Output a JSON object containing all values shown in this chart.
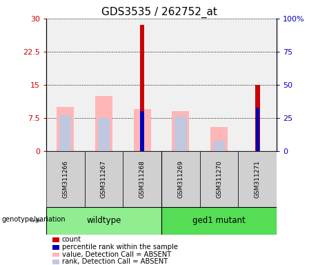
{
  "title": "GDS3535 / 262752_at",
  "samples": [
    "GSM311266",
    "GSM311267",
    "GSM311268",
    "GSM311269",
    "GSM311270",
    "GSM311271"
  ],
  "count_values": [
    0,
    0,
    28.5,
    0,
    0,
    15.0
  ],
  "rank_values": [
    0,
    0,
    30.0,
    0,
    0,
    33.0
  ],
  "absent_value_values": [
    10.0,
    12.5,
    9.5,
    9.0,
    5.5,
    0
  ],
  "absent_rank_values": [
    27.0,
    25.0,
    0,
    26.0,
    8.0,
    0
  ],
  "ylim_left": [
    0,
    30
  ],
  "ylim_right": [
    0,
    100
  ],
  "yticks_left": [
    0,
    7.5,
    15,
    22.5,
    30
  ],
  "yticks_right": [
    0,
    25,
    50,
    75,
    100
  ],
  "ytick_labels_left": [
    "0",
    "7.5",
    "15",
    "22.5",
    "30"
  ],
  "ytick_labels_right": [
    "0",
    "25",
    "50",
    "75",
    "100%"
  ],
  "color_count": "#cc0000",
  "color_rank": "#0000bb",
  "color_absent_value": "#ffb6b6",
  "color_absent_rank": "#c0c8e0",
  "legend_items": [
    {
      "label": "count",
      "color": "#cc0000"
    },
    {
      "label": "percentile rank within the sample",
      "color": "#0000bb"
    },
    {
      "label": "value, Detection Call = ABSENT",
      "color": "#ffb6b6"
    },
    {
      "label": "rank, Detection Call = ABSENT",
      "color": "#c0c8e0"
    }
  ],
  "tick_fontsize": 8,
  "title_fontsize": 11,
  "background_plot": "#f0f0f0",
  "background_xlabels": "#d0d0d0",
  "wt_color": "#90ee90",
  "gm_color": "#55dd55"
}
